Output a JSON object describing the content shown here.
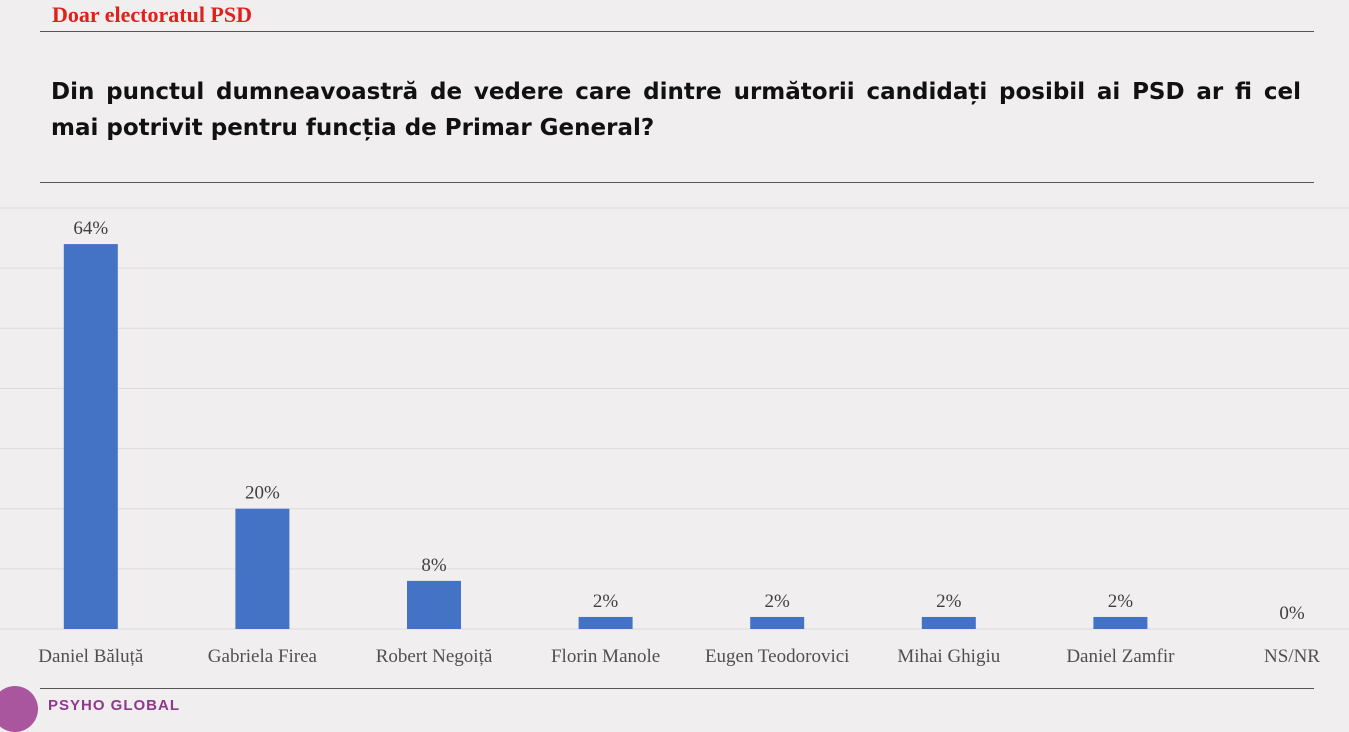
{
  "header": {
    "subtitle": "Doar electoratul PSD",
    "question": "Din punctul dumneavoastră de vedere care dintre următorii candidați posibil ai PSD ar fi cel mai potrivit pentru funcția de Primar General?"
  },
  "brand": {
    "logo_text": "PSYHO GLOBAL"
  },
  "colors": {
    "bar": "#4472c4",
    "subtitle": "#e0201c",
    "grid": "#dcdadb"
  },
  "chart_data": {
    "type": "bar",
    "categories": [
      "Daniel Băluță",
      "Gabriela Firea",
      "Robert Negoiță",
      "Florin Manole",
      "Eugen Teodorovici",
      "Mihai Ghigiu",
      "Daniel Zamfir",
      "NS/NR"
    ],
    "values": [
      64,
      20,
      8,
      2,
      2,
      2,
      2,
      0
    ],
    "value_labels": [
      "64%",
      "20%",
      "8%",
      "2%",
      "2%",
      "2%",
      "2%",
      "0%"
    ],
    "unit": "%",
    "ylim": [
      0,
      70
    ],
    "grid": true,
    "title": "",
    "xlabel": "",
    "ylabel": ""
  }
}
